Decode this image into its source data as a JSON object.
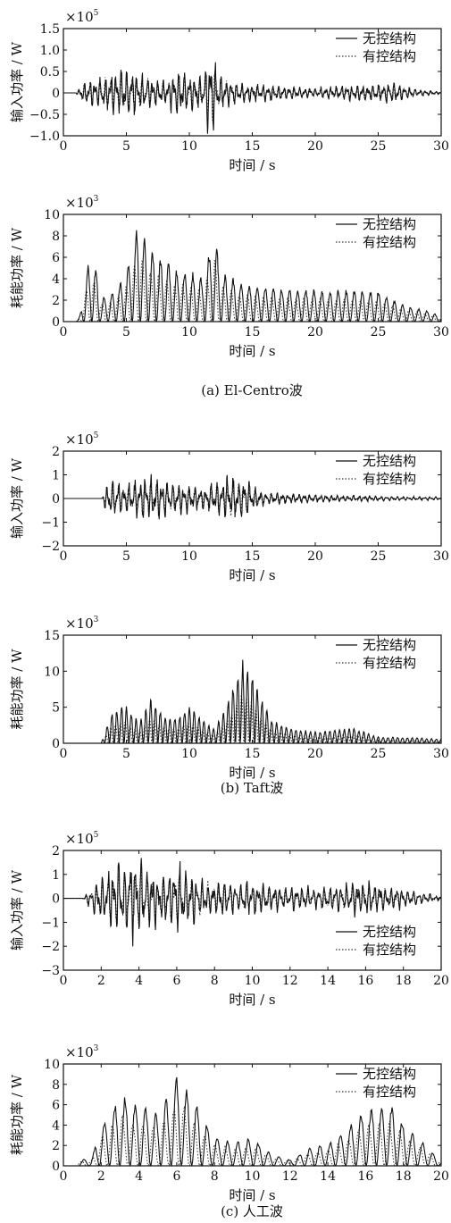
{
  "figure_captions": [
    "(a) El-Centro波",
    "(b) Taft波",
    "(c) 人工波"
  ],
  "legend": {
    "uncontrolled": "无控结构",
    "controlled": "有控结构"
  },
  "colors": {
    "uncontrolled": "#111111",
    "controlled": "#333333"
  },
  "chart_data": [
    {
      "type": "line",
      "ylabel": "输入功率 / W",
      "xlabel": "时间 / s",
      "y_multiplier": {
        "base": "×10",
        "exponent": "5"
      },
      "xlim": [
        0,
        30
      ],
      "ylim": [
        -1,
        1.5
      ],
      "xticks": [
        0,
        5,
        10,
        15,
        20,
        25,
        30
      ],
      "yticks": [
        -1,
        -0.5,
        0,
        0.5,
        1,
        1.5
      ],
      "yticklabels": [
        "−1.0",
        "−0.5",
        "0",
        "0.5",
        "1.0",
        "1.5"
      ],
      "signal": {
        "kind": "osc",
        "duration": 30,
        "onset": 1.0,
        "seed": 11,
        "freq": 2.4,
        "env": [
          [
            0,
            0
          ],
          [
            1,
            0
          ],
          [
            1.5,
            0.28
          ],
          [
            3,
            0.45
          ],
          [
            5,
            0.72
          ],
          [
            6,
            0.55
          ],
          [
            8,
            0.3
          ],
          [
            9,
            0.65
          ],
          [
            11,
            0.4
          ],
          [
            11.8,
            1.38
          ],
          [
            12.3,
            0.5
          ],
          [
            14,
            0.28
          ],
          [
            17,
            0.2
          ],
          [
            20,
            0.12
          ],
          [
            22,
            0.2
          ],
          [
            25,
            0.22
          ],
          [
            26,
            0.3
          ],
          [
            28,
            0.1
          ],
          [
            30,
            0.04
          ]
        ],
        "ctrl_scale": 0.75
      },
      "series": [
        {
          "name": "无控结构",
          "style": "solid"
        },
        {
          "name": "有控结构",
          "style": "dotted"
        }
      ]
    },
    {
      "type": "line",
      "ylabel": "耗能功率 / W",
      "xlabel": "时间 / s",
      "y_multiplier": {
        "base": "×10",
        "exponent": "3"
      },
      "xlim": [
        0,
        30
      ],
      "ylim": [
        0,
        10
      ],
      "xticks": [
        0,
        5,
        10,
        15,
        20,
        25,
        30
      ],
      "yticks": [
        0,
        2,
        4,
        6,
        8,
        10
      ],
      "yticklabels": [
        "0",
        "2",
        "4",
        "6",
        "8",
        "10"
      ],
      "signal": {
        "kind": "pos",
        "duration": 30,
        "onset": 1.0,
        "seed": 23,
        "freq": 0.78,
        "env": [
          [
            0,
            0
          ],
          [
            1,
            0
          ],
          [
            1.3,
            0.5
          ],
          [
            2,
            5.8
          ],
          [
            2.5,
            5.6
          ],
          [
            3,
            2.4
          ],
          [
            4,
            2.8
          ],
          [
            5,
            4.8
          ],
          [
            5.9,
            9.3
          ],
          [
            6.8,
            7.0
          ],
          [
            7.8,
            6.0
          ],
          [
            9,
            5.0
          ],
          [
            10,
            4.8
          ],
          [
            11,
            4.2
          ],
          [
            12,
            8.4
          ],
          [
            12.5,
            4.8
          ],
          [
            13,
            4.4
          ],
          [
            15,
            3.4
          ],
          [
            18,
            3.2
          ],
          [
            20,
            3.0
          ],
          [
            23,
            3.0
          ],
          [
            25,
            2.9
          ],
          [
            27,
            1.6
          ],
          [
            29,
            1.0
          ],
          [
            30,
            0.5
          ]
        ],
        "ctrl_scale": 0.72
      },
      "series": [
        {
          "name": "无控结构",
          "style": "solid"
        },
        {
          "name": "有控结构",
          "style": "dotted"
        }
      ]
    },
    {
      "type": "line",
      "ylabel": "输入功率 / W",
      "xlabel": "时间 / s",
      "y_multiplier": {
        "base": "×10",
        "exponent": "5"
      },
      "xlim": [
        0,
        30
      ],
      "ylim": [
        -2,
        2
      ],
      "xticks": [
        0,
        5,
        10,
        15,
        20,
        25,
        30
      ],
      "yticks": [
        -2,
        -1,
        0,
        1,
        2
      ],
      "yticklabels": [
        "−2",
        "−1",
        "0",
        "1",
        "2"
      ],
      "signal": {
        "kind": "osc",
        "duration": 30,
        "onset": 3.0,
        "seed": 37,
        "freq": 2.3,
        "env": [
          [
            0,
            0
          ],
          [
            3,
            0
          ],
          [
            3.6,
            0.9
          ],
          [
            5,
            0.7
          ],
          [
            6.5,
            1.1
          ],
          [
            8,
            0.9
          ],
          [
            9.5,
            0.8
          ],
          [
            11,
            0.5
          ],
          [
            13.2,
            1.2
          ],
          [
            14.3,
            1.0
          ],
          [
            16,
            0.3
          ],
          [
            20,
            0.2
          ],
          [
            25,
            0.12
          ],
          [
            30,
            0.08
          ]
        ],
        "ctrl_scale": 0.7
      },
      "series": [
        {
          "name": "无控结构",
          "style": "solid"
        },
        {
          "name": "有控结构",
          "style": "dotted"
        }
      ]
    },
    {
      "type": "line",
      "ylabel": "耗能功率 / W",
      "xlabel": "时间 / s",
      "y_multiplier": {
        "base": "×10",
        "exponent": "3"
      },
      "xlim": [
        0,
        30
      ],
      "ylim": [
        0,
        15
      ],
      "xticks": [
        0,
        5,
        10,
        15,
        20,
        25,
        30
      ],
      "yticks": [
        0,
        5,
        10,
        15
      ],
      "yticklabels": [
        "0",
        "5",
        "10",
        "15"
      ],
      "signal": {
        "kind": "pos",
        "duration": 30,
        "onset": 3.0,
        "seed": 41,
        "freq": 1.3,
        "env": [
          [
            0,
            0
          ],
          [
            3,
            0
          ],
          [
            3.8,
            4.2
          ],
          [
            4.8,
            5.6
          ],
          [
            6,
            3.0
          ],
          [
            7,
            6.4
          ],
          [
            8,
            4.0
          ],
          [
            9,
            3.6
          ],
          [
            10,
            5.4
          ],
          [
            11,
            3.6
          ],
          [
            12,
            2.0
          ],
          [
            13,
            5.8
          ],
          [
            14.3,
            12.3
          ],
          [
            15,
            9.5
          ],
          [
            15.6,
            7.0
          ],
          [
            16.5,
            3.4
          ],
          [
            18,
            2.2
          ],
          [
            20,
            1.6
          ],
          [
            23,
            2.2
          ],
          [
            25,
            0.9
          ],
          [
            28,
            0.8
          ],
          [
            30,
            0.6
          ]
        ],
        "ctrl_scale": 0.6
      },
      "series": [
        {
          "name": "无控结构",
          "style": "solid"
        },
        {
          "name": "有控结构",
          "style": "dotted"
        }
      ]
    },
    {
      "type": "line",
      "ylabel": "输入功率 / W",
      "xlabel": "时间 / s",
      "y_multiplier": {
        "base": "×10",
        "exponent": "5"
      },
      "xlim": [
        0,
        20
      ],
      "ylim": [
        -3,
        2
      ],
      "xticks": [
        0,
        2,
        4,
        6,
        8,
        10,
        12,
        14,
        16,
        18,
        20
      ],
      "yticks": [
        -3,
        -2,
        -1,
        0,
        1,
        2
      ],
      "yticklabels": [
        "−3",
        "−2",
        "−1",
        "0",
        "1",
        "2"
      ],
      "signal": {
        "kind": "osc",
        "duration": 20,
        "onset": 1.0,
        "seed": 53,
        "freq": 3.4,
        "env": [
          [
            0,
            0
          ],
          [
            1,
            0
          ],
          [
            1.8,
            1.0
          ],
          [
            2.8,
            1.8
          ],
          [
            4,
            2.2
          ],
          [
            5,
            1.2
          ],
          [
            6,
            1.8
          ],
          [
            7,
            1.2
          ],
          [
            8,
            0.9
          ],
          [
            10,
            0.8
          ],
          [
            12,
            0.55
          ],
          [
            14,
            0.6
          ],
          [
            16,
            0.9
          ],
          [
            18,
            0.5
          ],
          [
            20,
            0.1
          ]
        ],
        "ctrl_scale": 0.75
      },
      "series": [
        {
          "name": "无控结构",
          "style": "solid"
        },
        {
          "name": "有控结构",
          "style": "dotted"
        }
      ]
    },
    {
      "type": "line",
      "ylabel": "耗能功率 / W",
      "xlabel": "时间 / s",
      "y_multiplier": {
        "base": "×10",
        "exponent": "3"
      },
      "xlim": [
        0,
        20
      ],
      "ylim": [
        0,
        10
      ],
      "xticks": [
        0,
        2,
        4,
        6,
        8,
        10,
        12,
        14,
        16,
        18,
        20
      ],
      "yticks": [
        0,
        2,
        4,
        6,
        8,
        10
      ],
      "yticklabels": [
        "0",
        "2",
        "4",
        "6",
        "8",
        "10"
      ],
      "signal": {
        "kind": "pos",
        "duration": 20,
        "onset": 0.8,
        "seed": 67,
        "freq": 0.92,
        "env": [
          [
            0,
            0
          ],
          [
            0.8,
            0.6
          ],
          [
            1.5,
            0.8
          ],
          [
            2,
            4.2
          ],
          [
            3,
            7.2
          ],
          [
            4,
            6.2
          ],
          [
            5,
            5.2
          ],
          [
            6.1,
            9.3
          ],
          [
            7,
            6.2
          ],
          [
            8,
            3.0
          ],
          [
            9,
            2.4
          ],
          [
            10,
            2.8
          ],
          [
            11,
            1.2
          ],
          [
            12,
            0.6
          ],
          [
            13,
            1.8
          ],
          [
            14,
            2.2
          ],
          [
            15,
            3.8
          ],
          [
            16,
            5.8
          ],
          [
            17.2,
            6.5
          ],
          [
            18.2,
            3.8
          ],
          [
            19.2,
            2.2
          ],
          [
            20,
            0.4
          ]
        ],
        "ctrl_scale": 0.72
      },
      "series": [
        {
          "name": "无控结构",
          "style": "solid"
        },
        {
          "name": "有控结构",
          "style": "dotted"
        }
      ]
    }
  ]
}
